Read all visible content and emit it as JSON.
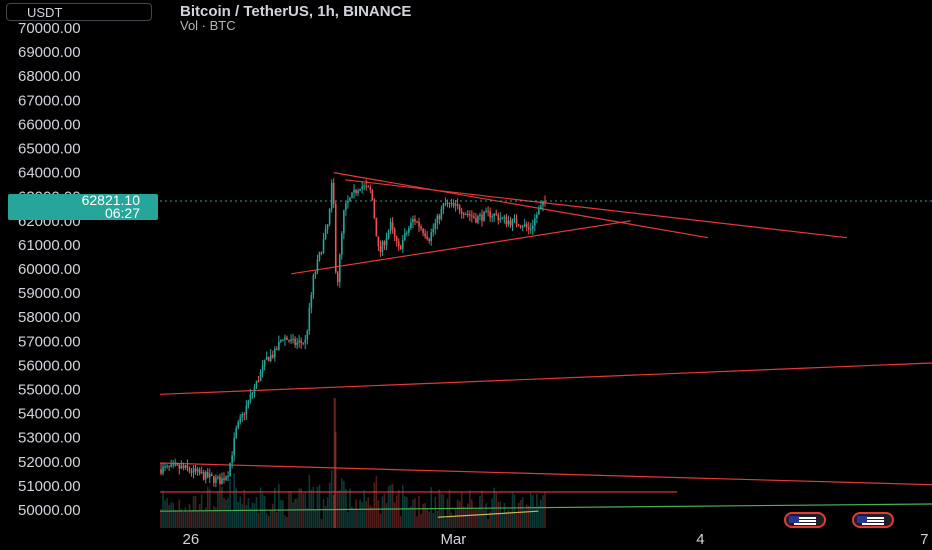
{
  "header": {
    "title": "Bitcoin / TetherUS, 1h, BINANCE",
    "subtitle": "Vol · BTC"
  },
  "currency_selector": "USDT",
  "last_price": {
    "price": "62821.10",
    "countdown": "06:27"
  },
  "colors": {
    "up": "#26a69a",
    "down": "#ef5350",
    "line": "#e53935",
    "green_line": "#4caf50",
    "yellow_line": "#c9b458"
  },
  "icons": [
    "us-flag-icon",
    "us-flag-icon"
  ],
  "chart_data": {
    "type": "candlestick",
    "title": "Bitcoin / TetherUS, 1h, BINANCE",
    "xlabel": "",
    "ylabel": "",
    "ylim": [
      49600,
      70600
    ],
    "y_ticks": [
      "70000.00",
      "69000.00",
      "68000.00",
      "67000.00",
      "66000.00",
      "65000.00",
      "64000.00",
      "63000.00",
      "62000.00",
      "61000.00",
      "60000.00",
      "59000.00",
      "58000.00",
      "57000.00",
      "56000.00",
      "55000.00",
      "54000.00",
      "53000.00",
      "52000.00",
      "51000.00",
      "50000.00"
    ],
    "x_ticks": [
      {
        "label": "26",
        "t": 0.04
      },
      {
        "label": "Mar",
        "t": 0.38
      },
      {
        "label": "4",
        "t": 0.7
      },
      {
        "label": "7",
        "t": 0.99
      }
    ],
    "anchors": [
      [
        0.0,
        51700
      ],
      [
        0.03,
        51750
      ],
      [
        0.06,
        51400
      ],
      [
        0.08,
        51200
      ],
      [
        0.09,
        51600
      ],
      [
        0.1,
        53300
      ],
      [
        0.12,
        54800
      ],
      [
        0.14,
        56300
      ],
      [
        0.15,
        56500
      ],
      [
        0.16,
        57200
      ],
      [
        0.175,
        56900
      ],
      [
        0.19,
        57000
      ],
      [
        0.2,
        59600
      ],
      [
        0.22,
        62000
      ],
      [
        0.225,
        63900
      ],
      [
        0.23,
        59000
      ],
      [
        0.24,
        62500
      ],
      [
        0.26,
        63500
      ],
      [
        0.275,
        63200
      ],
      [
        0.285,
        60600
      ],
      [
        0.3,
        61800
      ],
      [
        0.31,
        60800
      ],
      [
        0.33,
        62100
      ],
      [
        0.35,
        61300
      ],
      [
        0.37,
        62700
      ],
      [
        0.39,
        62500
      ],
      [
        0.41,
        62100
      ],
      [
        0.43,
        62300
      ],
      [
        0.45,
        62000
      ],
      [
        0.47,
        61900
      ],
      [
        0.48,
        61600
      ],
      [
        0.49,
        62300
      ],
      [
        0.5,
        62800
      ]
    ],
    "current_price": 62821.1,
    "trendlines": [
      {
        "name": "triangle-upper",
        "x1": 0.225,
        "y1": 64000,
        "x2": 0.71,
        "y2": 61300
      },
      {
        "name": "triangle-lower",
        "x1": 0.17,
        "y1": 59800,
        "x2": 0.61,
        "y2": 62000
      },
      {
        "name": "upper-channel",
        "x1": 0.0,
        "y1": 54800,
        "x2": 1.0,
        "y2": 56100
      },
      {
        "name": "lower-descending",
        "x1": 0.0,
        "y1": 51950,
        "x2": 1.0,
        "y2": 51050
      },
      {
        "name": "horizontal-support",
        "x1": 0.0,
        "y1": 50750,
        "x2": 0.67,
        "y2": 50750
      },
      {
        "name": "volume-trend",
        "x1": 0.0,
        "y1": 49950,
        "x2": 1.0,
        "y2": 50250
      }
    ]
  }
}
